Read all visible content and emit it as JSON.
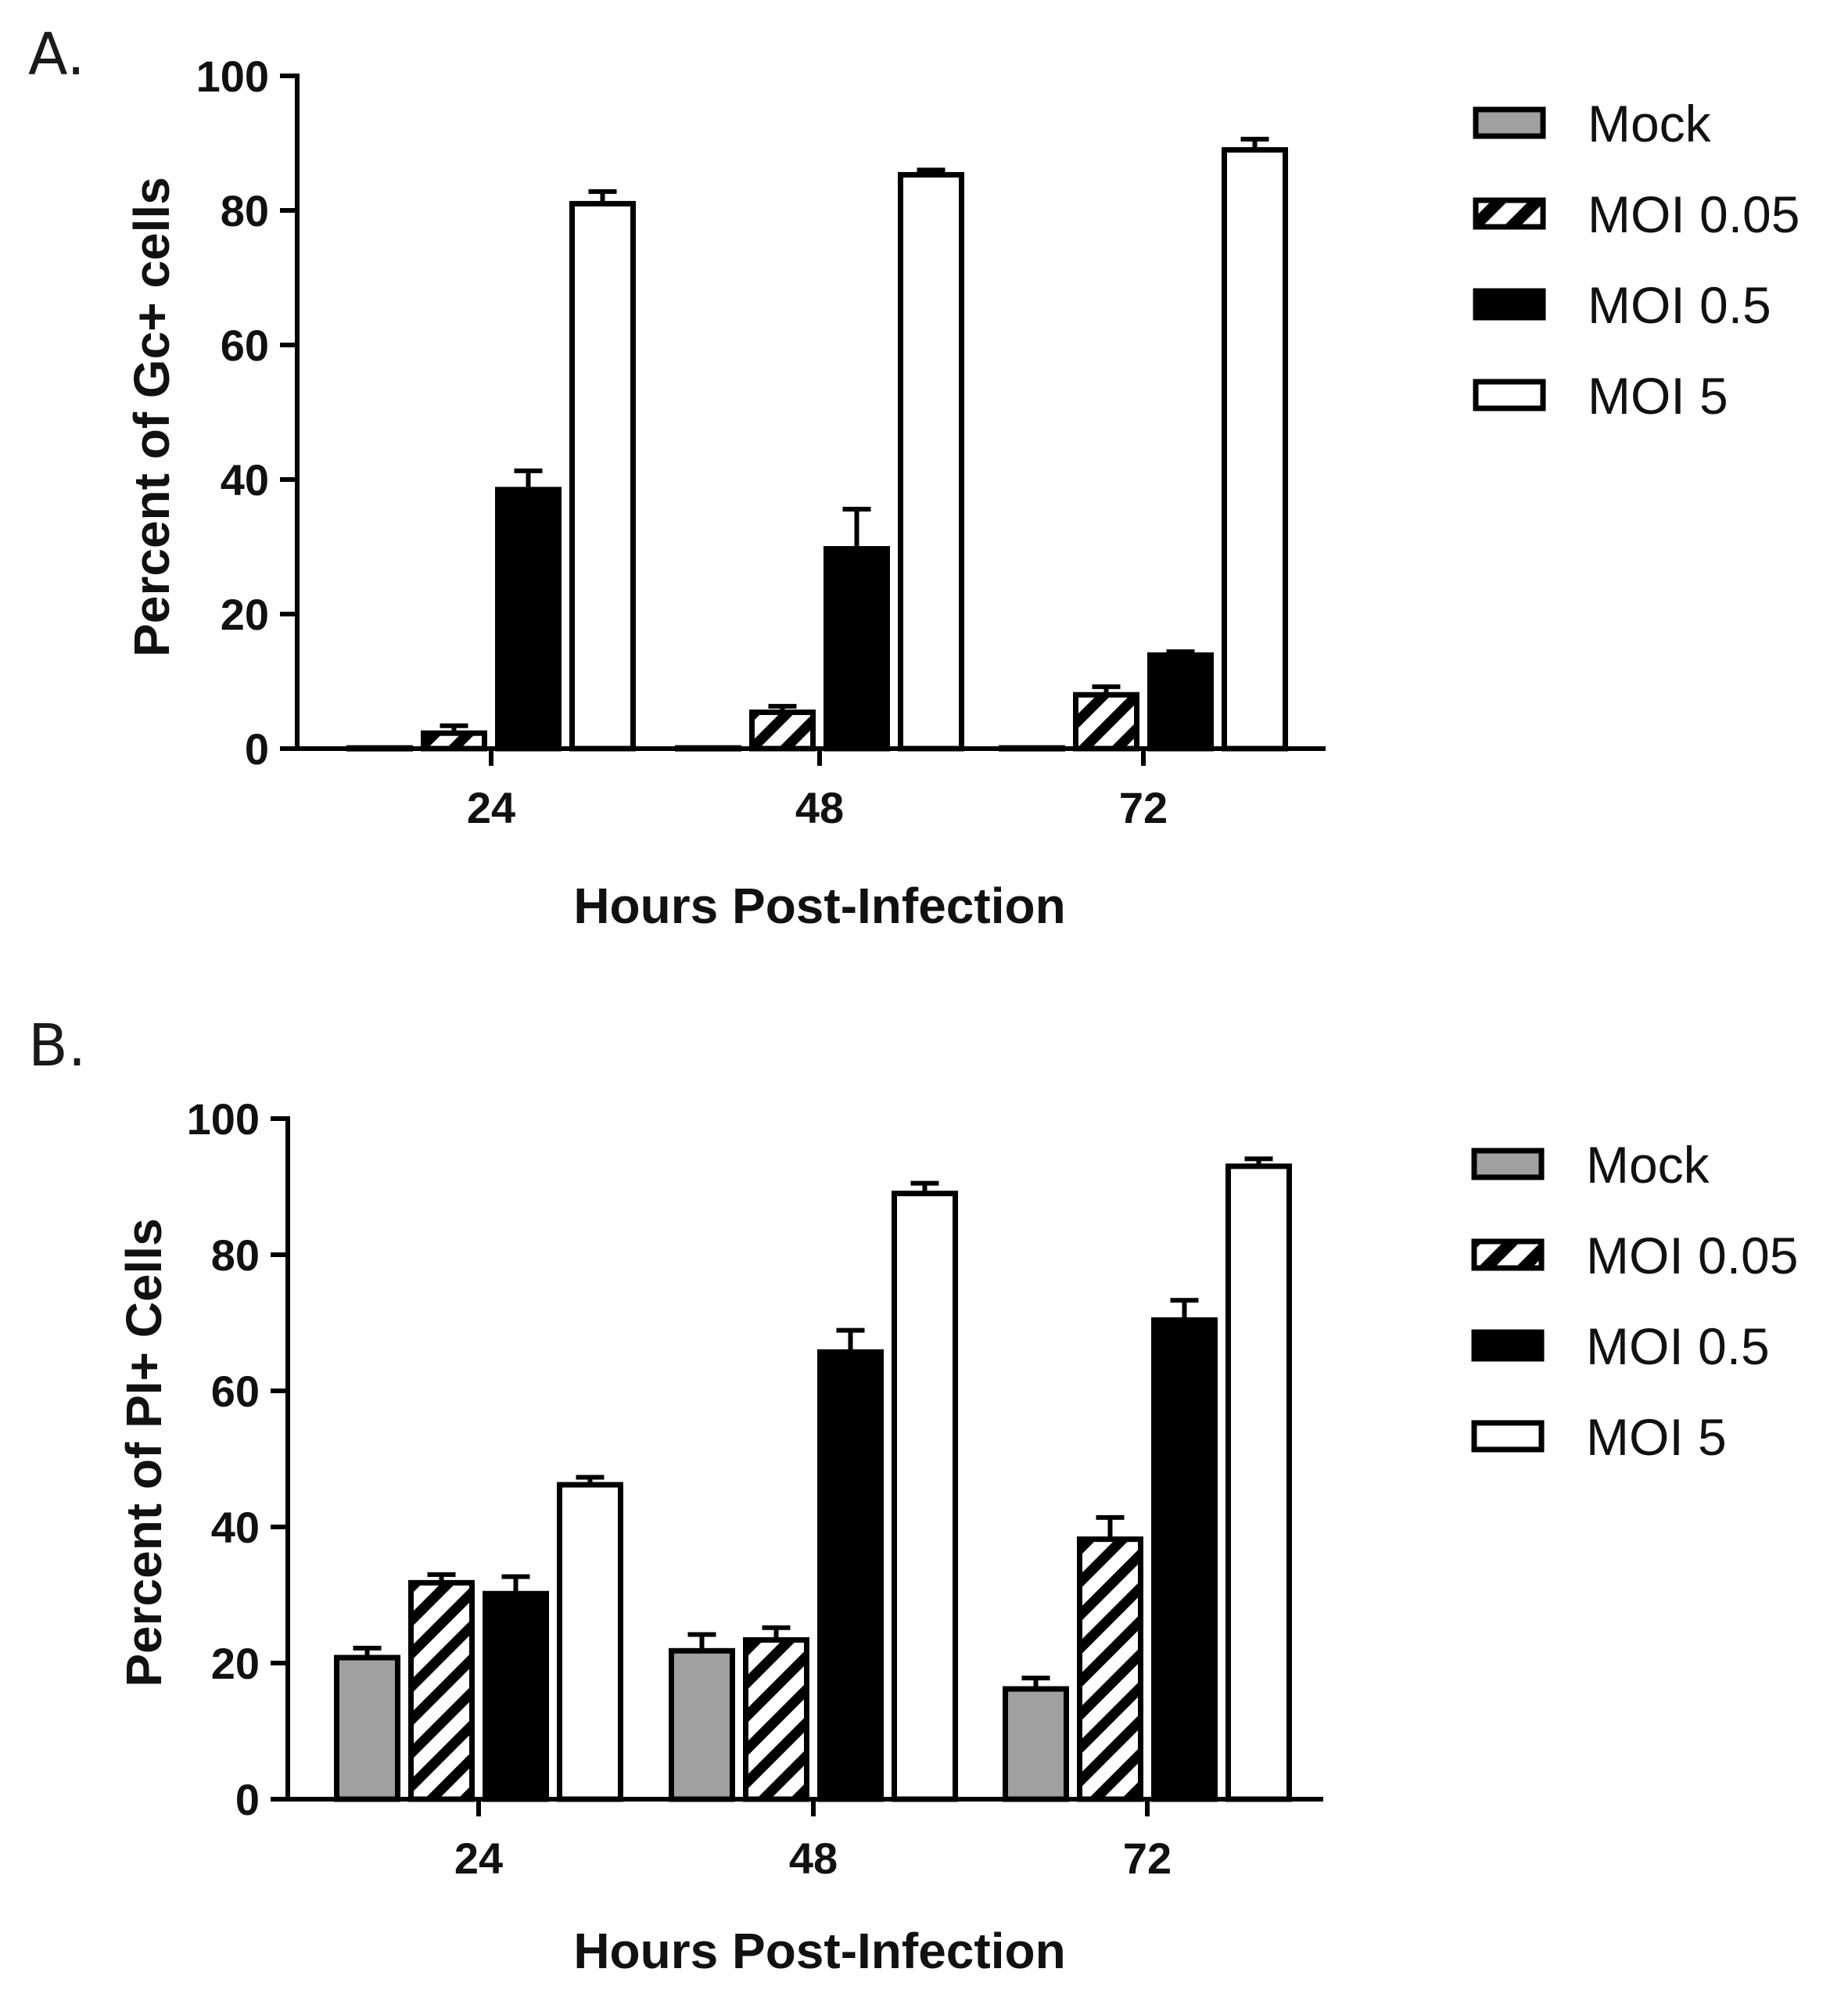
{
  "chart_data": [
    {
      "panel": "A.",
      "type": "bar",
      "title": "",
      "xlabel": "Hours Post-Infection",
      "ylabel": "Percent of Gc+ cells",
      "ylim": [
        0,
        100
      ],
      "yticks": [
        "0",
        "20",
        "40",
        "60",
        "80",
        "100"
      ],
      "categories": [
        "24",
        "48",
        "72"
      ],
      "series": [
        {
          "name": "Mock",
          "fill": "gray",
          "values": [
            0.1,
            0.1,
            0.1
          ],
          "errors": [
            0,
            0,
            0
          ]
        },
        {
          "name": "MOI 0.05",
          "fill": "hatch",
          "values": [
            2.3,
            5.4,
            8.0
          ],
          "errors": [
            1.1,
            0.9,
            1.2
          ]
        },
        {
          "name": "MOI 0.5",
          "fill": "black",
          "values": [
            38.5,
            29.7,
            13.9
          ],
          "errors": [
            2.8,
            5.9,
            0.5
          ]
        },
        {
          "name": "MOI 5",
          "fill": "white",
          "values": [
            81.0,
            85.3,
            89.0
          ],
          "errors": [
            1.8,
            0.7,
            1.6
          ]
        }
      ],
      "legend_position": "right"
    },
    {
      "panel": "B.",
      "type": "bar",
      "title": "",
      "xlabel": "Hours Post-Infection",
      "ylabel": "Percent of PI+ Cells",
      "ylim": [
        0,
        100
      ],
      "yticks": [
        "0",
        "20",
        "40",
        "60",
        "80",
        "100"
      ],
      "categories": [
        "24",
        "48",
        "72"
      ],
      "series": [
        {
          "name": "Mock",
          "fill": "gray",
          "values": [
            20.8,
            21.8,
            16.2
          ],
          "errors": [
            1.4,
            2.4,
            1.6
          ]
        },
        {
          "name": "MOI 0.05",
          "fill": "hatch",
          "values": [
            31.8,
            23.4,
            38.2
          ],
          "errors": [
            1.2,
            1.8,
            3.2
          ]
        },
        {
          "name": "MOI 0.5",
          "fill": "black",
          "values": [
            30.2,
            65.7,
            70.4
          ],
          "errors": [
            2.5,
            3.2,
            2.9
          ]
        },
        {
          "name": "MOI 5",
          "fill": "white",
          "values": [
            46.2,
            89.0,
            93.0
          ],
          "errors": [
            1.1,
            1.5,
            1.1
          ]
        }
      ],
      "legend_position": "right"
    }
  ],
  "colors": {
    "gray": "#a0a0a0",
    "black": "#000000",
    "white": "#ffffff",
    "hatch_bg": "#ffffff",
    "hatch_line": "#000000"
  }
}
